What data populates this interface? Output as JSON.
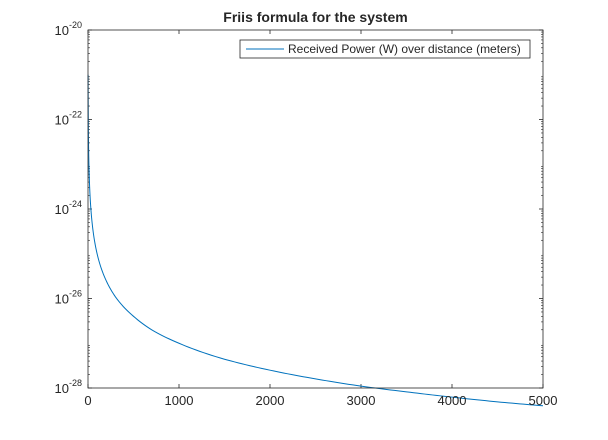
{
  "chart_data": {
    "type": "line",
    "title": "Friis formula for the system",
    "xlabel": "",
    "ylabel": "",
    "x_scale": "linear",
    "y_scale": "log",
    "xlim": [
      0,
      5000
    ],
    "ylim": [
      1e-28,
      1e-20
    ],
    "x_ticks": [
      {
        "value": 0,
        "label": "0"
      },
      {
        "value": 1000,
        "label": "1000"
      },
      {
        "value": 2000,
        "label": "2000"
      },
      {
        "value": 3000,
        "label": "3000"
      },
      {
        "value": 4000,
        "label": "4000"
      },
      {
        "value": 5000,
        "label": "5000"
      }
    ],
    "y_ticks": [
      {
        "value": 1e-28,
        "base": "10",
        "exponent": "-28"
      },
      {
        "value": 1e-26,
        "base": "10",
        "exponent": "-26"
      },
      {
        "value": 1e-24,
        "base": "10",
        "exponent": "-24"
      },
      {
        "value": 1e-22,
        "base": "10",
        "exponent": "-22"
      },
      {
        "value": 1e-20,
        "base": "10",
        "exponent": "-20"
      }
    ],
    "grid": false,
    "legend_position": "top-right",
    "series": [
      {
        "name": "Received Power (W) over distance (meters)",
        "color": "#0072BD",
        "x": [
          1,
          2,
          5,
          10,
          20,
          50,
          100,
          200,
          300,
          500,
          700,
          1000,
          1500,
          2000,
          2500,
          3000,
          3500,
          4000,
          4500,
          5000
        ],
        "y": [
          1e-21,
          2.5e-22,
          4e-23,
          1e-23,
          2.5e-24,
          4e-25,
          1e-25,
          2.5e-26,
          1.1e-26,
          4e-27,
          2e-27,
          1e-27,
          4.4e-28,
          2.5e-28,
          1.6e-28,
          1.1e-28,
          8.2e-29,
          6.25e-29,
          4.9e-29,
          4e-29
        ]
      }
    ]
  }
}
